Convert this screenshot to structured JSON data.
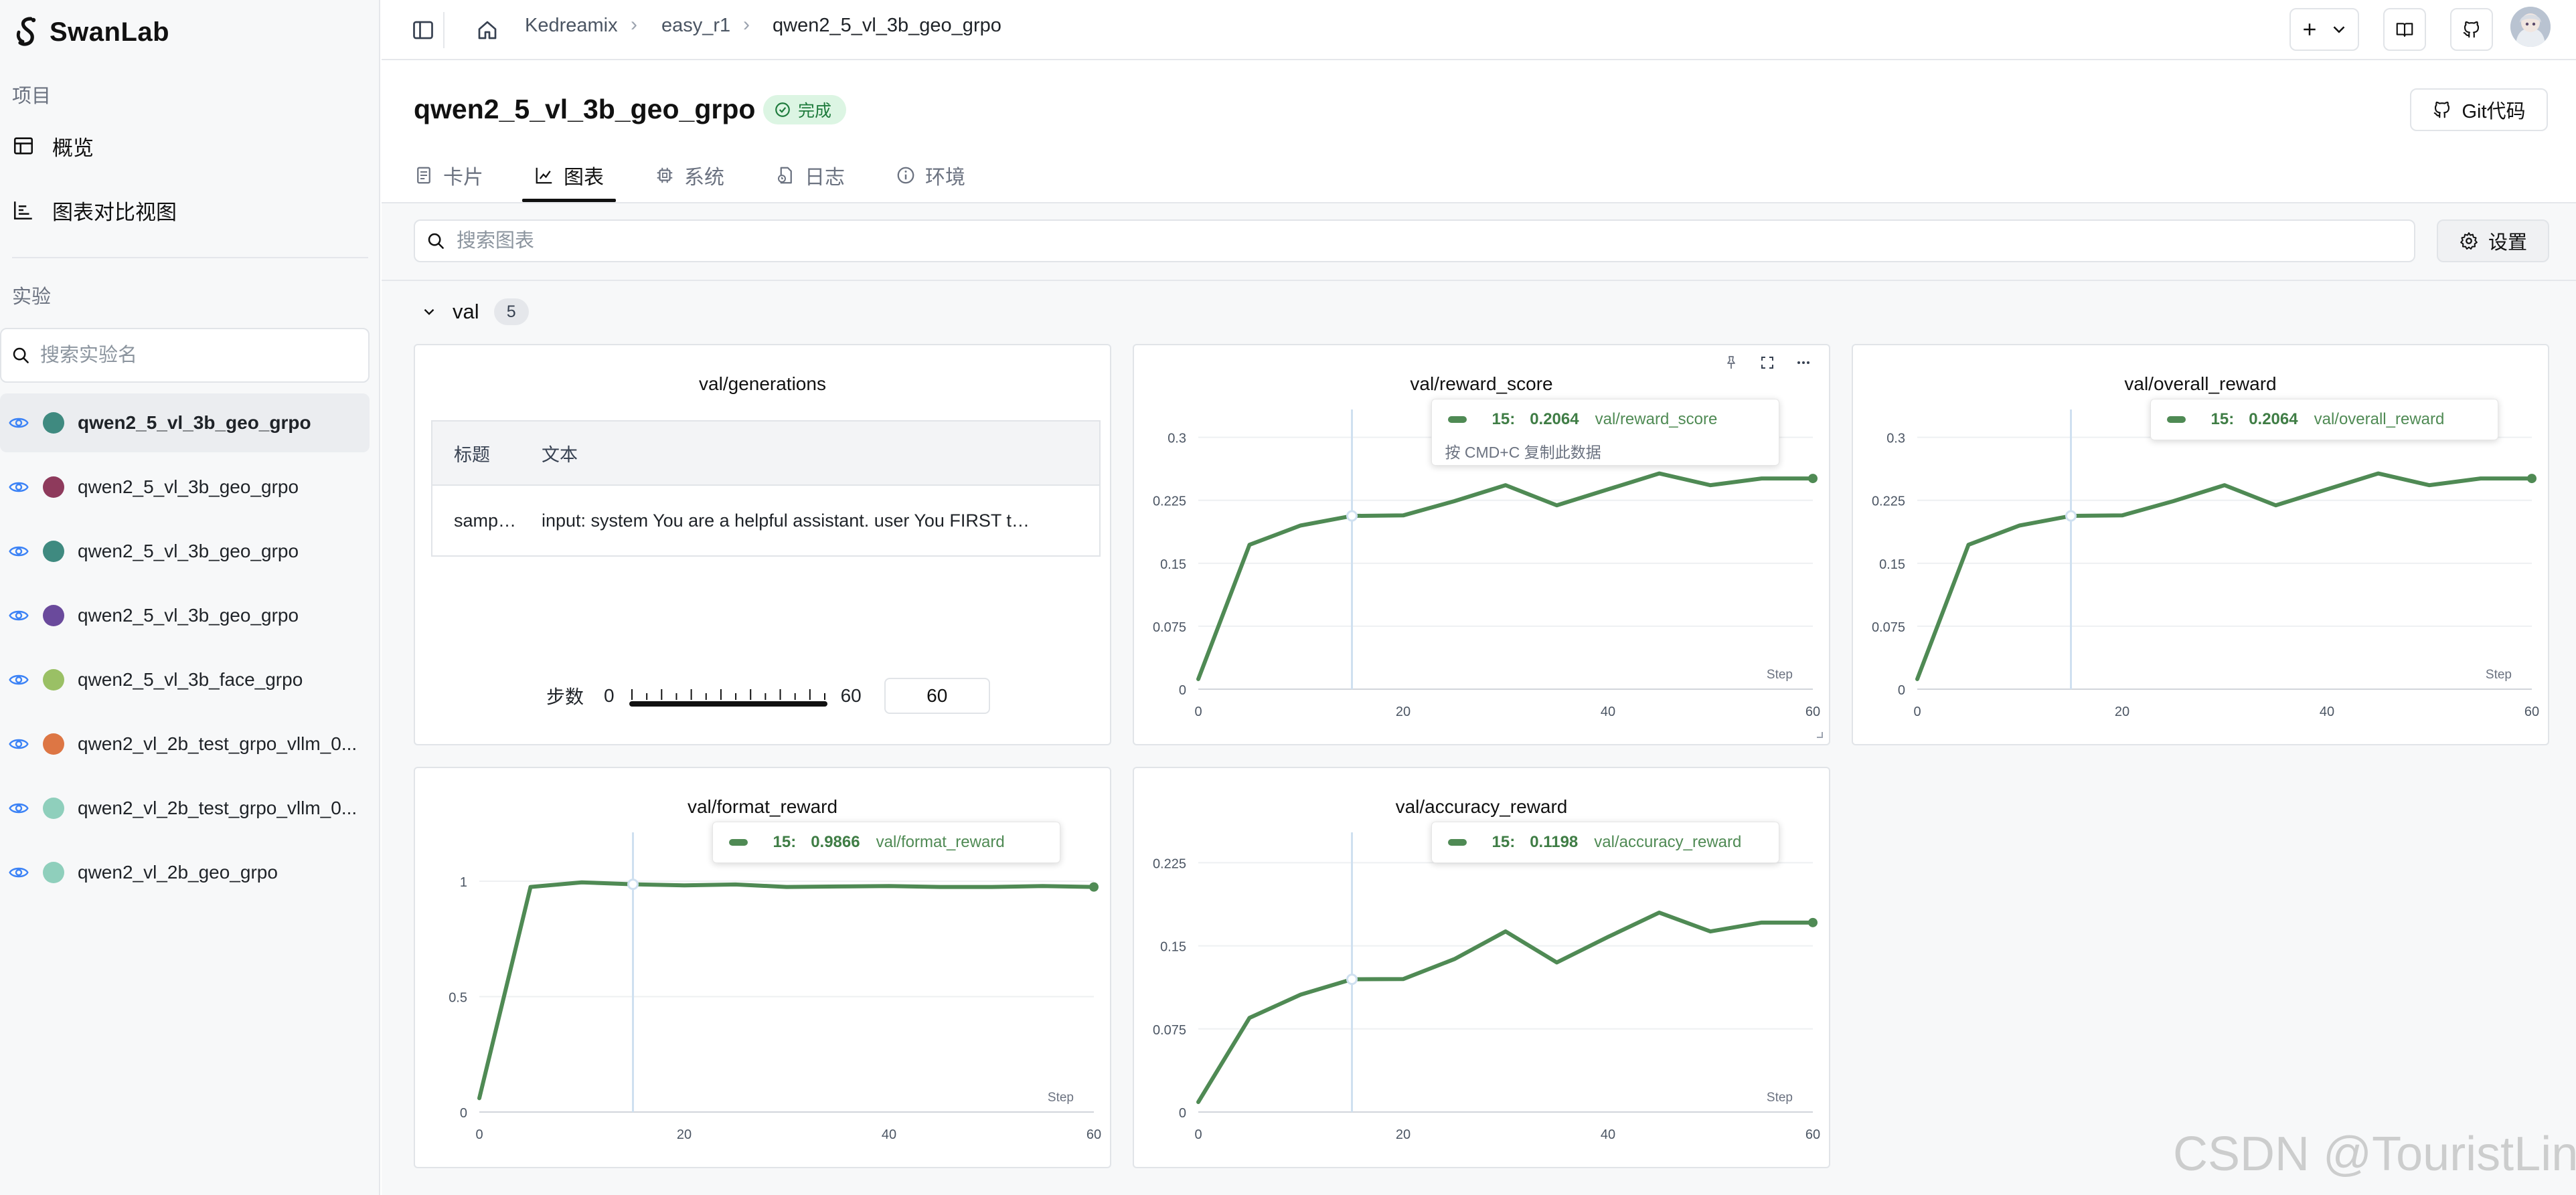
{
  "app": {
    "name": "SwanLab"
  },
  "sidebar": {
    "project_section": "项目",
    "nav": [
      {
        "label": "概览",
        "icon": "table-icon"
      },
      {
        "label": "图表对比视图",
        "icon": "chart-compare-icon"
      }
    ],
    "experiment_section": "实验",
    "search_placeholder": "搜索实验名",
    "experiments": [
      {
        "name": "qwen2_5_vl_3b_geo_grpo",
        "color": "#3f8a80",
        "active": true
      },
      {
        "name": "qwen2_5_vl_3b_geo_grpo",
        "color": "#8e3a5c",
        "active": false
      },
      {
        "name": "qwen2_5_vl_3b_geo_grpo",
        "color": "#3f8a80",
        "active": false
      },
      {
        "name": "qwen2_5_vl_3b_geo_grpo",
        "color": "#6a4a9c",
        "active": false
      },
      {
        "name": "qwen2_5_vl_3b_face_grpo",
        "color": "#9ac065",
        "active": false
      },
      {
        "name": "qwen2_vl_2b_test_grpo_vllm_0...",
        "color": "#dd7644",
        "active": false
      },
      {
        "name": "qwen2_vl_2b_test_grpo_vllm_0...",
        "color": "#8fcfbc",
        "active": false
      },
      {
        "name": "qwen2_vl_2b_geo_grpo",
        "color": "#8fcfbc",
        "active": false
      }
    ]
  },
  "topbar": {
    "breadcrumb": [
      "Kedreamix",
      "easy_r1",
      "qwen2_5_vl_3b_geo_grpo"
    ]
  },
  "run": {
    "title": "qwen2_5_vl_3b_geo_grpo",
    "status": "完成",
    "git_button": "Git代码"
  },
  "tabs": [
    {
      "label": "卡片",
      "icon": "card-icon",
      "active": false
    },
    {
      "label": "图表",
      "icon": "chart-icon",
      "active": true
    },
    {
      "label": "系统",
      "icon": "chip-icon",
      "active": false
    },
    {
      "label": "日志",
      "icon": "log-icon",
      "active": false
    },
    {
      "label": "环境",
      "icon": "info-icon",
      "active": false
    }
  ],
  "charts_toolbar": {
    "search_placeholder": "搜索图表",
    "settings_label": "设置"
  },
  "group": {
    "name": "val",
    "count": "5"
  },
  "generations": {
    "title": "val/generations",
    "headers": [
      "标题",
      "文本"
    ],
    "rows": [
      {
        "title": "samp…",
        "text": "input: system You are a helpful assistant. user You FIRST t…"
      }
    ],
    "step_label": "步数",
    "step_min": "0",
    "step_max": "60",
    "step_value": "60"
  },
  "chart_data": [
    {
      "type": "line",
      "title": "val/reward_score",
      "x": [
        0,
        5,
        10,
        15,
        20,
        25,
        30,
        35,
        40,
        45,
        50,
        55,
        60
      ],
      "series": [
        {
          "name": "val/reward_score",
          "values": [
            0.012,
            0.172,
            0.195,
            0.2064,
            0.207,
            0.224,
            0.243,
            0.219,
            0.238,
            0.257,
            0.243,
            0.251,
            0.251
          ]
        }
      ],
      "xlabel": "Step",
      "xticks": [
        "0",
        "20",
        "40",
        "60"
      ],
      "yticks": [
        "0",
        "0.075",
        "0.15",
        "0.225",
        "0.3"
      ],
      "xlim": [
        0,
        60
      ],
      "ylim": [
        0,
        0.33
      ],
      "tooltip": {
        "step": "15:",
        "value": "0.2064",
        "name": "val/reward_score",
        "hint": "按 CMD+C 复制此数据"
      }
    },
    {
      "type": "line",
      "title": "val/overall_reward",
      "x": [
        0,
        5,
        10,
        15,
        20,
        25,
        30,
        35,
        40,
        45,
        50,
        55,
        60
      ],
      "series": [
        {
          "name": "val/overall_reward",
          "values": [
            0.012,
            0.172,
            0.195,
            0.2064,
            0.207,
            0.224,
            0.243,
            0.219,
            0.238,
            0.257,
            0.243,
            0.251,
            0.251
          ]
        }
      ],
      "xlabel": "Step",
      "xticks": [
        "0",
        "20",
        "40",
        "60"
      ],
      "yticks": [
        "0",
        "0.075",
        "0.15",
        "0.225",
        "0.3"
      ],
      "xlim": [
        0,
        60
      ],
      "ylim": [
        0,
        0.33
      ],
      "tooltip": {
        "step": "15:",
        "value": "0.2064",
        "name": "val/overall_reward"
      }
    },
    {
      "type": "line",
      "title": "val/format_reward",
      "x": [
        0,
        5,
        10,
        15,
        20,
        25,
        30,
        35,
        40,
        45,
        50,
        55,
        60
      ],
      "series": [
        {
          "name": "val/format_reward",
          "values": [
            0.06,
            0.975,
            0.995,
            0.9866,
            0.982,
            0.986,
            0.975,
            0.977,
            0.979,
            0.975,
            0.975,
            0.979,
            0.975
          ]
        }
      ],
      "xlabel": "Step",
      "xticks": [
        "0",
        "20",
        "40",
        "60"
      ],
      "yticks": [
        "0",
        "0.5",
        "1"
      ],
      "xlim": [
        0,
        60
      ],
      "ylim": [
        0,
        1.2
      ],
      "tooltip": {
        "step": "15:",
        "value": "0.9866",
        "name": "val/format_reward"
      }
    },
    {
      "type": "line",
      "title": "val/accuracy_reward",
      "x": [
        0,
        5,
        10,
        15,
        20,
        25,
        30,
        35,
        40,
        45,
        50,
        55,
        60
      ],
      "series": [
        {
          "name": "val/accuracy_reward",
          "values": [
            0.009,
            0.085,
            0.106,
            0.1198,
            0.12,
            0.138,
            0.163,
            0.135,
            0.158,
            0.18,
            0.163,
            0.171,
            0.171
          ]
        }
      ],
      "xlabel": "Step",
      "xticks": [
        "0",
        "20",
        "40",
        "60"
      ],
      "yticks": [
        "0",
        "0.075",
        "0.15",
        "0.225"
      ],
      "xlim": [
        0,
        60
      ],
      "ylim": [
        0,
        0.25
      ],
      "tooltip": {
        "step": "15:",
        "value": "0.1198",
        "name": "val/accuracy_reward"
      }
    }
  ],
  "watermark": "CSDN @TouristLin"
}
